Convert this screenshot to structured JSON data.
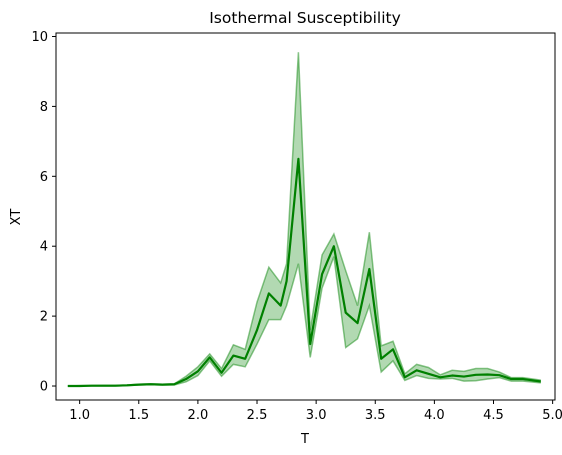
{
  "chart_data": {
    "type": "line",
    "title": "Isothermal Susceptibility",
    "xlabel": "T",
    "ylabel": "XT",
    "xlim": [
      0.8,
      5.02
    ],
    "ylim": [
      -0.4,
      10.1
    ],
    "xticks": [
      "1.0",
      "1.5",
      "2.0",
      "2.5",
      "3.0",
      "3.5",
      "4.0",
      "4.5",
      "5.0"
    ],
    "xtick_values": [
      1.0,
      1.5,
      2.0,
      2.5,
      3.0,
      3.5,
      4.0,
      4.5,
      5.0
    ],
    "yticks": [
      "0",
      "2",
      "4",
      "6",
      "8",
      "10"
    ],
    "ytick_values": [
      0,
      2,
      4,
      6,
      8,
      10
    ],
    "grid": false,
    "colors": {
      "line": "#008000",
      "band": "#008000"
    },
    "series": [
      {
        "x": [
          0.9,
          1.0,
          1.1,
          1.2,
          1.3,
          1.4,
          1.5,
          1.6,
          1.7,
          1.8,
          1.9,
          2.0,
          2.1,
          2.2,
          2.3,
          2.4,
          2.5,
          2.6,
          2.7,
          2.75,
          2.85,
          2.95,
          3.05,
          3.15,
          3.25,
          3.35,
          3.45,
          3.55,
          3.65,
          3.75,
          3.85,
          3.95,
          4.05,
          4.15,
          4.25,
          4.35,
          4.45,
          4.55,
          4.65,
          4.75,
          4.9
        ],
        "y": [
          0.0,
          0.0,
          0.01,
          0.01,
          0.01,
          0.02,
          0.04,
          0.05,
          0.04,
          0.05,
          0.2,
          0.42,
          0.82,
          0.38,
          0.87,
          0.78,
          1.6,
          2.65,
          2.3,
          3.0,
          6.5,
          1.2,
          3.2,
          4.0,
          2.1,
          1.8,
          3.35,
          0.78,
          1.05,
          0.25,
          0.45,
          0.35,
          0.25,
          0.3,
          0.27,
          0.32,
          0.33,
          0.31,
          0.2,
          0.2,
          0.13
        ],
        "y_low": [
          0.0,
          0.0,
          0.0,
          0.0,
          0.0,
          0.01,
          0.03,
          0.04,
          0.03,
          0.03,
          0.12,
          0.3,
          0.72,
          0.28,
          0.62,
          0.55,
          1.2,
          1.9,
          1.9,
          2.3,
          3.5,
          0.82,
          2.8,
          3.7,
          1.1,
          1.35,
          2.3,
          0.4,
          0.72,
          0.16,
          0.3,
          0.22,
          0.2,
          0.22,
          0.14,
          0.15,
          0.2,
          0.24,
          0.14,
          0.14,
          0.09
        ],
        "y_high": [
          0.0,
          0.01,
          0.01,
          0.02,
          0.02,
          0.03,
          0.05,
          0.06,
          0.05,
          0.06,
          0.28,
          0.55,
          0.92,
          0.5,
          1.18,
          1.05,
          2.4,
          3.4,
          2.95,
          3.5,
          9.55,
          1.6,
          3.75,
          4.35,
          3.3,
          2.3,
          4.4,
          1.15,
          1.28,
          0.35,
          0.62,
          0.53,
          0.32,
          0.45,
          0.42,
          0.5,
          0.5,
          0.4,
          0.24,
          0.24,
          0.17
        ]
      }
    ]
  }
}
